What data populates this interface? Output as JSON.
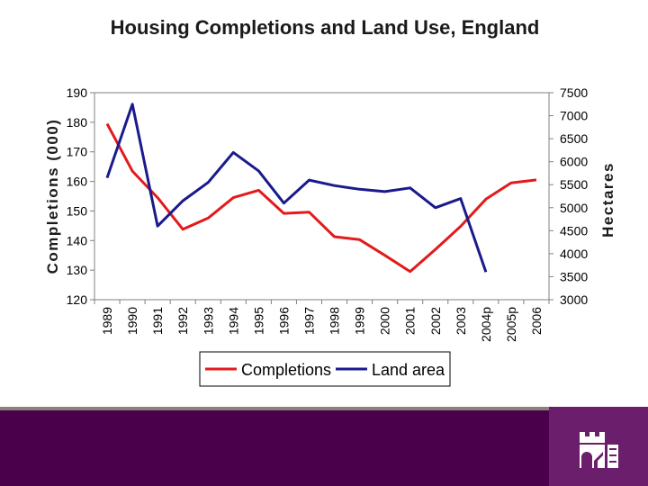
{
  "chart_data": {
    "type": "line",
    "title": "Housing Completions and Land Use, England",
    "categories": [
      "1989",
      "1990",
      "1991",
      "1992",
      "1993",
      "1994",
      "1995",
      "1996",
      "1997",
      "1998",
      "1999",
      "2000",
      "2001",
      "2002",
      "2003",
      "2004p",
      "2005p",
      "2006"
    ],
    "ylabel": "Completions (000)",
    "y2label": "Hectares",
    "ylim": [
      120,
      190
    ],
    "y2lim": [
      3000,
      7500
    ],
    "yticks": [
      120,
      130,
      140,
      150,
      160,
      170,
      180,
      190
    ],
    "y2ticks": [
      3000,
      3500,
      4000,
      4500,
      5000,
      5500,
      6000,
      6500,
      7000,
      7500
    ],
    "grid": false,
    "legend_position": "bottom",
    "series": [
      {
        "name": "Completions",
        "axis": "left",
        "color": "#e31a1c",
        "values": [
          179.5,
          163.5,
          154.5,
          143.8,
          147.6,
          154.5,
          157.0,
          149.2,
          149.6,
          141.3,
          140.3,
          135.0,
          129.5,
          137.0,
          144.8,
          154.0,
          159.5,
          160.5
        ]
      },
      {
        "name": "Land area",
        "axis": "right",
        "color": "#1a1a8c",
        "values": [
          5650,
          7250,
          4600,
          5150,
          5550,
          6200,
          5800,
          5100,
          5600,
          5480,
          5400,
          5350,
          5430,
          5000,
          5200,
          3600,
          null,
          null
        ]
      }
    ]
  }
}
